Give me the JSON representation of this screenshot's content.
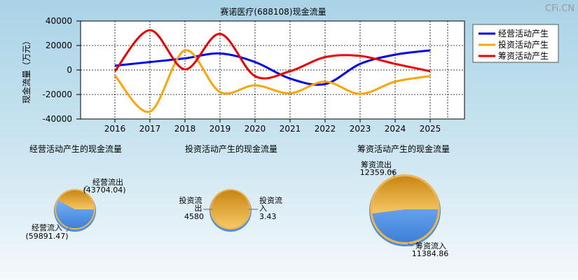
{
  "watermark": "CFi.CN",
  "chart_data": [
    {
      "type": "line",
      "title": "赛诺医疗(688108)现金流量",
      "ylabel": "现金流量（万元）",
      "x": [
        "2016",
        "2017",
        "2018",
        "2019",
        "2020",
        "2021",
        "2022",
        "2023",
        "2024",
        "2025"
      ],
      "ylim": [
        -40000,
        40000
      ],
      "yticks": [
        "40000",
        "20000",
        "0",
        "-20000",
        "-40000"
      ],
      "grid": true,
      "legend_position": "top-right",
      "series": [
        {
          "name": "经营活动产生",
          "color": "#0000ee",
          "values": [
            3500,
            6500,
            9500,
            13500,
            6500,
            -7000,
            -11500,
            5000,
            12500,
            16000
          ]
        },
        {
          "name": "投资活动产生",
          "color": "#ffa500",
          "values": [
            -4500,
            -34000,
            16000,
            -18000,
            -12500,
            -19000,
            -9500,
            -19500,
            -9500,
            -5000
          ]
        },
        {
          "name": "筹资活动产生",
          "color": "#ee0000",
          "values": [
            -1000,
            32500,
            500,
            29500,
            -5000,
            -1000,
            10500,
            11500,
            5000,
            -1000
          ]
        }
      ]
    },
    {
      "type": "pie",
      "title": "经营活动产生的现金流量",
      "slices": [
        {
          "label": "经营流出",
          "value": 43704.04,
          "value_text": "(43704.04)",
          "color": "#e8a634"
        },
        {
          "label": "经营流入",
          "value": 59891.47,
          "value_text": "(59891.47)",
          "color": "#5b9df0"
        }
      ]
    },
    {
      "type": "pie",
      "title": "投资活动产生的现金流量",
      "slices": [
        {
          "label": "投资流出",
          "value": 4580,
          "value_text": "4580",
          "color": "#f0a830"
        },
        {
          "label": "投资流入",
          "value": 3.43,
          "value_text": "3.43",
          "color": "#5b9df0"
        }
      ]
    },
    {
      "type": "pie",
      "title": "筹资活动产生的现金流量",
      "slices": [
        {
          "label": "筹资流出",
          "value": 12359.06,
          "value_text": "12359.06",
          "color": "#e8a634"
        },
        {
          "label": "筹资流入",
          "value": 11384.86,
          "value_text": "11384.86",
          "color": "#5b9df0"
        }
      ]
    }
  ]
}
